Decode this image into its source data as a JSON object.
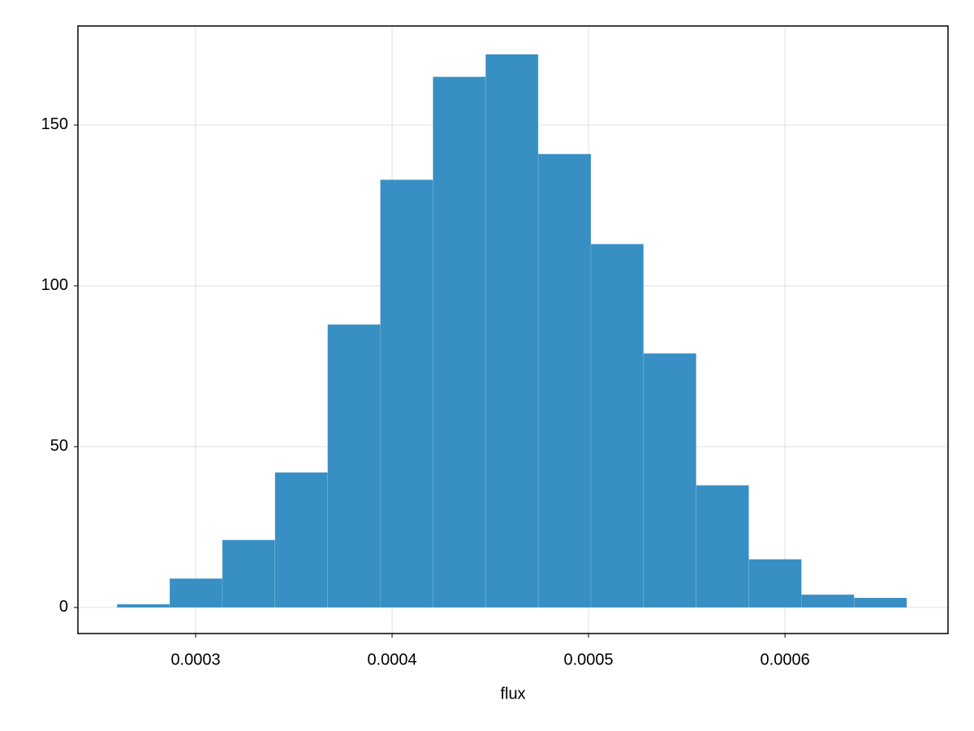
{
  "chart_data": {
    "type": "histogram",
    "xlabel": "flux",
    "bins": [
      0.00026,
      0.0002868,
      0.0003136,
      0.0003404,
      0.0003672,
      0.000394,
      0.0004208,
      0.0004476,
      0.0004744,
      0.0005012,
      0.000528,
      0.0005548,
      0.0005816,
      0.0006084,
      0.0006352,
      0.000662
    ],
    "values": [
      1,
      9,
      21,
      42,
      88,
      133,
      165,
      172,
      141,
      113,
      79,
      38,
      15,
      4,
      3
    ],
    "color": "#378fc3",
    "xlim": [
      0.00024008,
      0.000683
    ],
    "xticks": [
      0.0003,
      0.0004,
      0.0005,
      0.0006
    ],
    "ylim": [
      -8.1,
      180.8
    ],
    "yticks": [
      0,
      50,
      100,
      150
    ],
    "grid": true
  }
}
